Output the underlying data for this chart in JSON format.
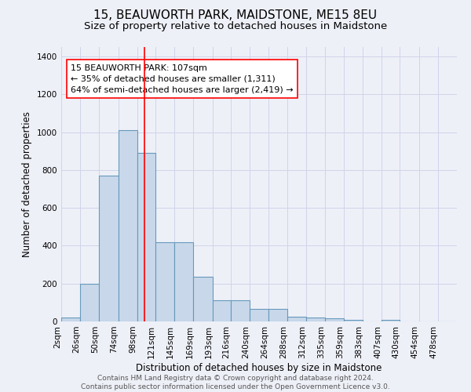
{
  "title": "15, BEAUWORTH PARK, MAIDSTONE, ME15 8EU",
  "subtitle": "Size of property relative to detached houses in Maidstone",
  "xlabel": "Distribution of detached houses by size in Maidstone",
  "ylabel": "Number of detached properties",
  "bin_labels": [
    "2sqm",
    "26sqm",
    "50sqm",
    "74sqm",
    "98sqm",
    "121sqm",
    "145sqm",
    "169sqm",
    "193sqm",
    "216sqm",
    "240sqm",
    "264sqm",
    "288sqm",
    "312sqm",
    "335sqm",
    "359sqm",
    "383sqm",
    "407sqm",
    "430sqm",
    "454sqm",
    "478sqm"
  ],
  "bin_edges": [
    2,
    26,
    50,
    74,
    98,
    121,
    145,
    169,
    193,
    216,
    240,
    264,
    288,
    312,
    335,
    359,
    383,
    407,
    430,
    454,
    478,
    502
  ],
  "bar_heights": [
    20,
    200,
    770,
    1010,
    890,
    420,
    420,
    235,
    110,
    110,
    65,
    65,
    25,
    20,
    15,
    10,
    0,
    10,
    0,
    0,
    0
  ],
  "bar_facecolor": "#c8d8ea",
  "bar_edgecolor": "#6699bb",
  "bar_linewidth": 0.8,
  "grid_color": "#d0d4e8",
  "background_color": "#eef0f8",
  "red_line_x": 107,
  "annotation_text": "15 BEAUWORTH PARK: 107sqm\n← 35% of detached houses are smaller (1,311)\n64% of semi-detached houses are larger (2,419) →",
  "annotation_box_edgecolor": "red",
  "annotation_box_facecolor": "white",
  "ylim": [
    0,
    1450
  ],
  "yticks": [
    0,
    200,
    400,
    600,
    800,
    1000,
    1200,
    1400
  ],
  "footer_line1": "Contains HM Land Registry data © Crown copyright and database right 2024.",
  "footer_line2": "Contains public sector information licensed under the Open Government Licence v3.0.",
  "title_fontsize": 11,
  "subtitle_fontsize": 9.5,
  "axis_label_fontsize": 8.5,
  "tick_fontsize": 7.5,
  "annotation_fontsize": 8,
  "footer_fontsize": 6.5
}
